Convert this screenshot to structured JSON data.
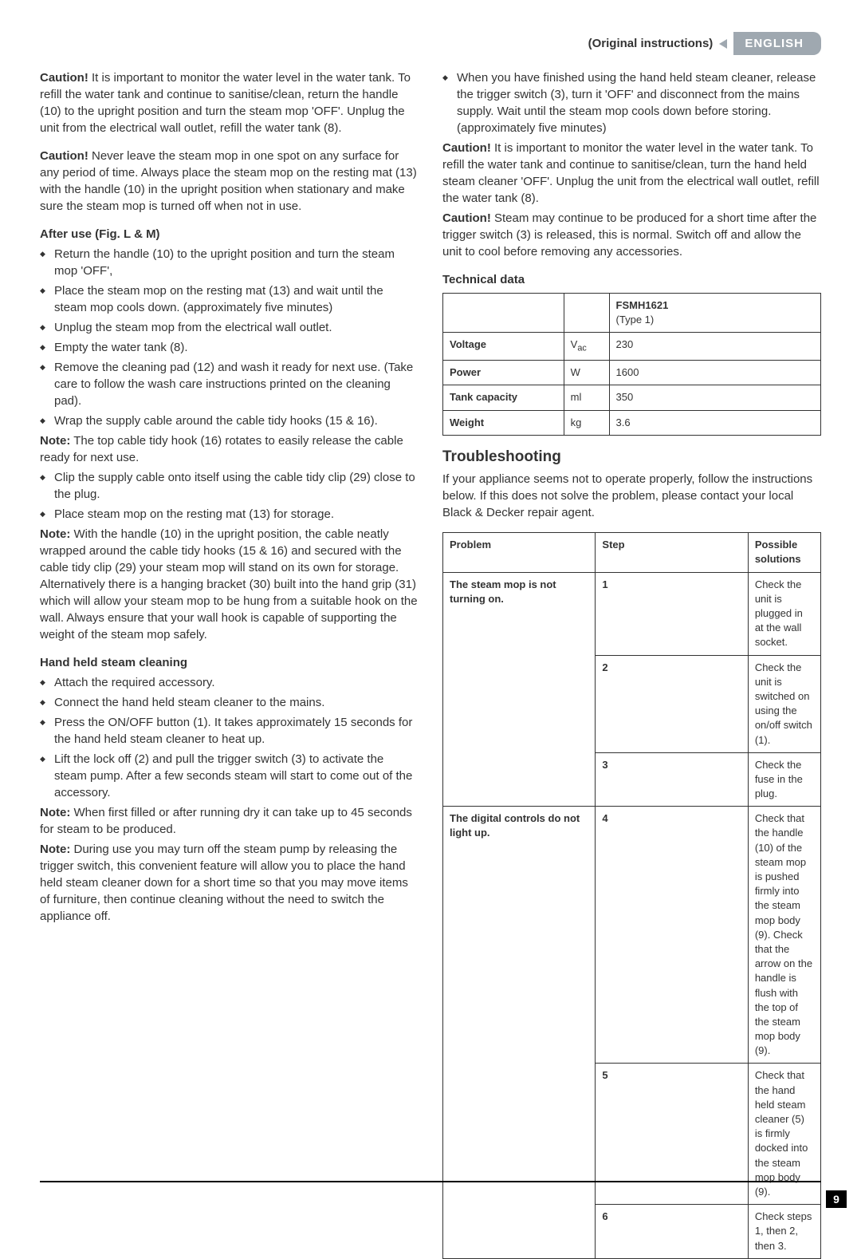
{
  "header": {
    "original_instructions": "(Original instructions)",
    "language": "ENGLISH"
  },
  "left": {
    "caution1_label": "Caution!",
    "caution1_text": " It is important to monitor the water level in the water tank. To refill the water tank and continue to sanitise/clean, return the handle (10) to the upright position and turn the steam mop 'OFF'. Unplug the unit from the electrical wall outlet, refill the water tank (8).",
    "caution2_label": "Caution!",
    "caution2_text": " Never leave the steam mop in one spot on any surface for any period of time. Always place the steam mop on the resting mat (13) with the handle (10) in the upright position when stationary and make sure the steam mop is turned off when not in use.",
    "after_use_title": "After use (Fig.  L & M)",
    "after_use_items": [
      "Return the handle (10) to the upright position and turn the steam mop 'OFF',",
      "Place the steam mop on the resting mat (13) and wait until the steam mop cools down. (approximately five minutes)",
      "Unplug the steam mop from the electrical wall outlet.",
      "Empty the water tank (8).",
      "Remove the cleaning pad (12) and wash it ready for next use. (Take care to follow the wash care instructions printed on the cleaning pad).",
      "Wrap the supply cable around the cable tidy hooks (15 & 16)."
    ],
    "note1_label": "Note:",
    "note1_text": " The top cable tidy hook (16) rotates to easily release the cable ready for next use.",
    "after_use_items2": [
      "Clip the supply cable onto itself using the cable tidy clip (29) close to the plug.",
      "Place steam mop on the resting mat (13) for storage."
    ],
    "note2_label": "Note:",
    "note2_text": " With the handle (10) in the upright position, the cable neatly wrapped around the cable tidy hooks (15 & 16) and secured with the cable tidy clip (29) your steam mop will stand on its own for storage. Alternatively there is a hanging bracket (30) built into the hand grip (31) which will allow your steam mop to be hung from a suitable hook on the wall. Always ensure that your wall hook is capable of supporting the weight of the steam mop safely.",
    "handheld_title": "Hand held steam cleaning",
    "handheld_items": [
      "Attach the required accessory.",
      "Connect the hand held steam cleaner to the mains.",
      "Press the ON/OFF button (1). It takes approximately 15 seconds for the hand held steam cleaner to heat up.",
      "Lift the lock off (2) and pull the trigger switch (3) to activate the steam pump. After a few seconds steam will start to come out of the accessory."
    ],
    "note3_label": "Note:",
    "note3_text": " When first filled or after running dry it can take up to 45 seconds for steam to be produced.",
    "note4_label": "Note:",
    "note4_text": " During use you may turn off the steam pump by releasing the trigger switch, this convenient feature will allow you to place the hand held steam cleaner down for a short time so that you may move items of furniture, then continue cleaning without the need to switch the appliance off."
  },
  "right": {
    "finish_item": "When you have finished using the hand held steam cleaner, release the trigger switch (3), turn it 'OFF' and disconnect from the mains supply. Wait until the steam mop cools down before storing. (approximately five minutes)",
    "caution3_label": "Caution!",
    "caution3_text": " It is important to monitor the water level in the water tank. To refill the water tank and continue to sanitise/clean, turn the hand held steam cleaner 'OFF'. Unplug the unit from the electrical wall outlet, refill the water tank (8).",
    "caution4_label": "Caution!",
    "caution4_text": " Steam may continue to be produced for a short time after the trigger switch (3) is released, this is normal. Switch off and allow the unit to cool before removing any accessories.",
    "technical_title": "Technical data",
    "td_table": {
      "model_header": "FSMH1621",
      "type_header": "(Type 1)",
      "rows": [
        {
          "label": "Voltage",
          "unit": "Vac",
          "value": "230"
        },
        {
          "label": "Power",
          "unit": "W",
          "value": "1600"
        },
        {
          "label": "Tank capacity",
          "unit": "ml",
          "value": "350"
        },
        {
          "label": "Weight",
          "unit": "kg",
          "value": "3.6"
        }
      ]
    },
    "troubleshooting_title": "Troubleshooting",
    "troubleshooting_intro": "If your appliance seems not to operate properly, follow the instructions below. If this does not solve the problem, please contact your local Black & Decker repair agent.",
    "ts_headers": {
      "problem": "Problem",
      "step": "Step",
      "solutions": "Possible solutions"
    },
    "ts_rows": [
      {
        "problem": "The steam mop is not turning on.",
        "step": "1",
        "solution": "Check the unit is plugged in at the wall socket."
      },
      {
        "problem": "",
        "step": "2",
        "solution": "Check the unit is switched on using the on/off switch (1)."
      },
      {
        "problem": "",
        "step": "3",
        "solution": "Check the fuse in the plug."
      },
      {
        "problem": "The digital controls do not light up.",
        "step": "4",
        "solution": "Check that the handle (10) of the steam mop is pushed firmly into the steam mop body (9). Check that the arrow on the handle is flush with the top of the steam mop body (9)."
      },
      {
        "problem": "",
        "step": "5",
        "solution": "Check that the hand held steam cleaner (5) is firmly docked into the steam mop body (9)."
      },
      {
        "problem": "",
        "step": "6",
        "solution": "Check steps 1, then 2, then 3."
      }
    ]
  },
  "page_number": "9"
}
